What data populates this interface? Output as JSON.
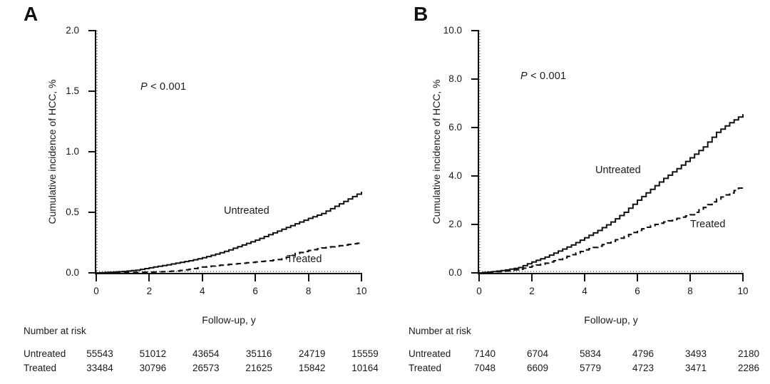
{
  "chart_data": [
    {
      "type": "line",
      "panel_label": "A",
      "p_symbol": "P",
      "p_text": " < 0.001",
      "ylabel": "Cumulative incidence of HCC, %",
      "xlabel": "Follow-up, y",
      "ylim": [
        0,
        2.0
      ],
      "xlim": [
        0,
        10
      ],
      "ytick_labels": [
        "0.0",
        "0.5",
        "1.0",
        "1.5",
        "2.0"
      ],
      "ytick_values": [
        0,
        0.5,
        1.0,
        1.5,
        2.0
      ],
      "xtick_labels": [
        "0",
        "2",
        "4",
        "6",
        "8",
        "10"
      ],
      "xtick_values": [
        0,
        2,
        4,
        6,
        8,
        10
      ],
      "legend_position": "inline-labels",
      "grid": false,
      "series": [
        {
          "name": "Untreated",
          "line_style": "solid",
          "x": [
            0,
            0.5,
            1,
            1.5,
            2,
            2.5,
            3,
            3.5,
            4,
            4.5,
            5,
            5.5,
            6,
            6.5,
            7,
            7.5,
            8,
            8.5,
            9,
            9.5,
            10
          ],
          "y": [
            0,
            0.005,
            0.012,
            0.022,
            0.042,
            0.06,
            0.08,
            0.1,
            0.125,
            0.155,
            0.19,
            0.23,
            0.27,
            0.315,
            0.36,
            0.405,
            0.45,
            0.49,
            0.55,
            0.61,
            0.67
          ]
        },
        {
          "name": "Treated",
          "line_style": "dashed",
          "x": [
            0,
            0.5,
            1,
            1.5,
            2,
            2.5,
            3,
            3.5,
            4,
            4.5,
            5,
            5.5,
            6,
            6.5,
            7,
            7.5,
            8,
            8.5,
            9,
            9.5,
            10
          ],
          "y": [
            0,
            0,
            0.002,
            0.004,
            0.006,
            0.01,
            0.016,
            0.03,
            0.048,
            0.06,
            0.07,
            0.08,
            0.09,
            0.1,
            0.115,
            0.16,
            0.185,
            0.205,
            0.22,
            0.235,
            0.25
          ]
        }
      ],
      "risk_table": {
        "title": "Number at risk",
        "timepoints": [
          0,
          2,
          4,
          6,
          8,
          10
        ],
        "rows": [
          {
            "name": "Untreated",
            "values": [
              "55543",
              "51012",
              "43654",
              "35116",
              "24719",
              "15559"
            ]
          },
          {
            "name": "Treated",
            "values": [
              "33484",
              "30796",
              "26573",
              "21625",
              "15842",
              "10164"
            ]
          }
        ]
      }
    },
    {
      "type": "line",
      "panel_label": "B",
      "p_symbol": "P",
      "p_text": " < 0.001",
      "ylabel": "Cumulative incidence of HCC, %",
      "xlabel": "Follow-up, y",
      "ylim": [
        0,
        10.0
      ],
      "xlim": [
        0,
        10
      ],
      "ytick_labels": [
        "0.0",
        "2.0",
        "4.0",
        "6.0",
        "8.0",
        "10.0"
      ],
      "ytick_values": [
        0,
        2.0,
        4.0,
        6.0,
        8.0,
        10.0
      ],
      "xtick_labels": [
        "0",
        "2",
        "4",
        "6",
        "8",
        "10"
      ],
      "xtick_values": [
        0,
        2,
        4,
        6,
        8,
        10
      ],
      "legend_position": "inline-labels",
      "grid": false,
      "series": [
        {
          "name": "Untreated",
          "line_style": "solid",
          "x": [
            0,
            0.5,
            1,
            1.5,
            2,
            2.5,
            3,
            3.5,
            4,
            4.5,
            5,
            5.5,
            6,
            6.5,
            7,
            7.5,
            8,
            8.5,
            9,
            9.5,
            10
          ],
          "y": [
            0,
            0.05,
            0.12,
            0.22,
            0.45,
            0.65,
            0.9,
            1.15,
            1.45,
            1.75,
            2.1,
            2.5,
            3.0,
            3.45,
            3.9,
            4.3,
            4.75,
            5.2,
            5.8,
            6.2,
            6.55
          ]
        },
        {
          "name": "Treated",
          "line_style": "dashed",
          "x": [
            0,
            0.5,
            1,
            1.5,
            2,
            2.5,
            3,
            3.5,
            4,
            4.5,
            5,
            5.5,
            6,
            6.5,
            7,
            7.5,
            8,
            8.5,
            9,
            9.5,
            10
          ],
          "y": [
            0,
            0.03,
            0.08,
            0.15,
            0.28,
            0.4,
            0.55,
            0.75,
            0.95,
            1.1,
            1.3,
            1.5,
            1.75,
            1.95,
            2.1,
            2.25,
            2.4,
            2.7,
            3.05,
            3.3,
            3.6
          ]
        }
      ],
      "risk_table": {
        "title": "Number at risk",
        "timepoints": [
          0,
          2,
          4,
          6,
          8,
          10
        ],
        "rows": [
          {
            "name": "Untreated",
            "values": [
              "7140",
              "6704",
              "5834",
              "4796",
              "3493",
              "2180"
            ]
          },
          {
            "name": "Treated",
            "values": [
              "7048",
              "6609",
              "5779",
              "4723",
              "3471",
              "2286"
            ]
          }
        ]
      }
    }
  ]
}
